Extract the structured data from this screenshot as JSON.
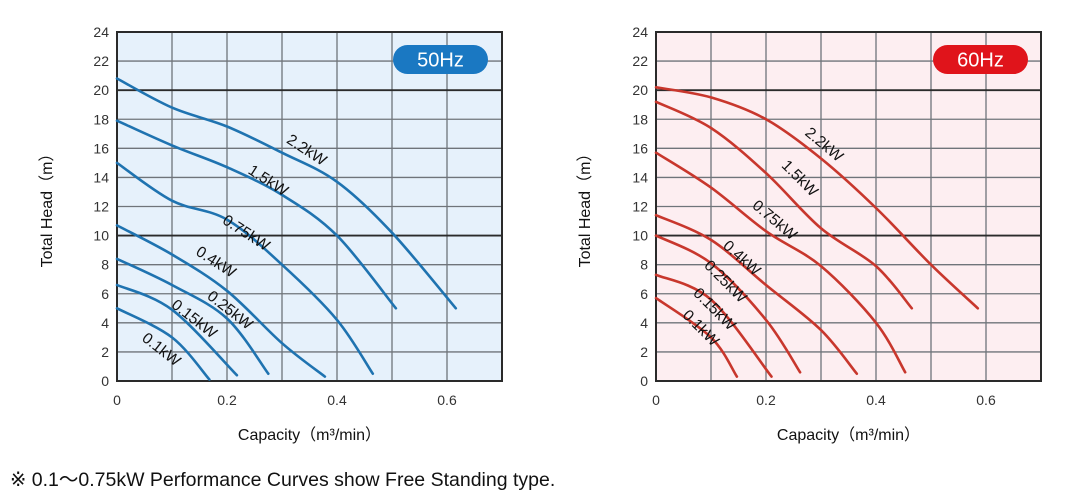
{
  "chart_data": [
    {
      "type": "line",
      "title": "",
      "badge": "50Hz",
      "xlabel": "Capacity（m³/min）",
      "ylabel": "Total Head（m）",
      "xlim": [
        0,
        0.7
      ],
      "ylim": [
        0,
        24
      ],
      "xticks": [
        0,
        0.2,
        0.4,
        0.6
      ],
      "xtick_labels": [
        "0",
        "0.2",
        "0.4",
        "0.6"
      ],
      "yticks": [
        0,
        2,
        4,
        6,
        8,
        10,
        12,
        14,
        16,
        18,
        20,
        22,
        24
      ],
      "ytick_labels": [
        "0",
        "2",
        "4",
        "6",
        "8",
        "10",
        "12",
        "14",
        "16",
        "18",
        "20",
        "22",
        "24"
      ],
      "x_grid_step": 0.1,
      "y_grid_step": 2,
      "grid": true,
      "emphasized_gridlines_y": [
        10,
        20
      ],
      "line_color": "#1f73b0",
      "background_color": "#e6f1fb",
      "badge_color": "#1a78c2",
      "series": [
        {
          "name": "2.2kW",
          "points": [
            [
              0,
              20.8
            ],
            [
              0.1,
              18.8
            ],
            [
              0.2,
              17.5
            ],
            [
              0.3,
              15.7
            ],
            [
              0.4,
              13.7
            ],
            [
              0.5,
              10.2
            ],
            [
              0.616,
              5.0
            ]
          ]
        },
        {
          "name": "1.5kW",
          "points": [
            [
              0,
              17.9
            ],
            [
              0.1,
              16.2
            ],
            [
              0.2,
              14.7
            ],
            [
              0.3,
              12.8
            ],
            [
              0.4,
              10.0
            ],
            [
              0.507,
              5.0
            ]
          ]
        },
        {
          "name": "0.75kW",
          "points": [
            [
              0,
              15.0
            ],
            [
              0.1,
              12.4
            ],
            [
              0.2,
              11.1
            ],
            [
              0.3,
              8.0
            ],
            [
              0.4,
              4.2
            ],
            [
              0.465,
              0.5
            ]
          ]
        },
        {
          "name": "0.4kW",
          "points": [
            [
              0,
              10.7
            ],
            [
              0.1,
              8.7
            ],
            [
              0.2,
              6.2
            ],
            [
              0.3,
              2.6
            ],
            [
              0.378,
              0.3
            ]
          ]
        },
        {
          "name": "0.25kW",
          "points": [
            [
              0,
              8.4
            ],
            [
              0.1,
              6.6
            ],
            [
              0.2,
              4.3
            ],
            [
              0.275,
              0.5
            ]
          ]
        },
        {
          "name": "0.15kW",
          "points": [
            [
              0,
              6.6
            ],
            [
              0.1,
              4.9
            ],
            [
              0.218,
              0.4
            ]
          ]
        },
        {
          "name": "0.1kW",
          "points": [
            [
              0,
              5.0
            ],
            [
              0.1,
              3.0
            ],
            [
              0.168,
              0.1
            ]
          ]
        }
      ],
      "curve_labels": [
        {
          "text": "2.2kW",
          "x": 0.34,
          "y": 15.6,
          "angle": 33
        },
        {
          "text": "1.5kW",
          "x": 0.27,
          "y": 13.5,
          "angle": 33
        },
        {
          "text": "0.75kW",
          "x": 0.23,
          "y": 9.9,
          "angle": 33
        },
        {
          "text": "0.4kW",
          "x": 0.175,
          "y": 7.9,
          "angle": 33
        },
        {
          "text": "0.25kW",
          "x": 0.2,
          "y": 4.6,
          "angle": 38
        },
        {
          "text": "0.15kW",
          "x": 0.135,
          "y": 4.0,
          "angle": 38
        },
        {
          "text": "0.1kW",
          "x": 0.075,
          "y": 1.9,
          "angle": 38
        }
      ]
    },
    {
      "type": "line",
      "title": "",
      "badge": "60Hz",
      "xlabel": "Capacity（m³/min）",
      "ylabel": "Total Head（m）",
      "xlim": [
        0,
        0.7
      ],
      "ylim": [
        0,
        24
      ],
      "xticks": [
        0,
        0.2,
        0.4,
        0.6
      ],
      "xtick_labels": [
        "0",
        "0.2",
        "0.4",
        "0.6"
      ],
      "yticks": [
        0,
        2,
        4,
        6,
        8,
        10,
        12,
        14,
        16,
        18,
        20,
        22,
        24
      ],
      "ytick_labels": [
        "0",
        "2",
        "4",
        "6",
        "8",
        "10",
        "12",
        "14",
        "16",
        "18",
        "20",
        "22",
        "24"
      ],
      "x_grid_step": 0.1,
      "y_grid_step": 2,
      "grid": true,
      "emphasized_gridlines_y": [
        10,
        20
      ],
      "line_color": "#c8372d",
      "background_color": "#fdeef1",
      "badge_color": "#e0141b",
      "series": [
        {
          "name": "2.2kW",
          "points": [
            [
              0,
              20.2
            ],
            [
              0.1,
              19.5
            ],
            [
              0.2,
              18.0
            ],
            [
              0.3,
              15.3
            ],
            [
              0.4,
              11.9
            ],
            [
              0.5,
              8.0
            ],
            [
              0.585,
              5.0
            ]
          ]
        },
        {
          "name": "1.5kW",
          "points": [
            [
              0,
              19.2
            ],
            [
              0.1,
              17.4
            ],
            [
              0.2,
              14.3
            ],
            [
              0.3,
              10.5
            ],
            [
              0.4,
              7.9
            ],
            [
              0.465,
              5.0
            ]
          ]
        },
        {
          "name": "0.75kW",
          "points": [
            [
              0,
              15.7
            ],
            [
              0.1,
              13.3
            ],
            [
              0.2,
              10.3
            ],
            [
              0.3,
              7.9
            ],
            [
              0.4,
              4.0
            ],
            [
              0.453,
              0.6
            ]
          ]
        },
        {
          "name": "0.4kW",
          "points": [
            [
              0,
              11.4
            ],
            [
              0.1,
              9.7
            ],
            [
              0.2,
              6.6
            ],
            [
              0.3,
              3.5
            ],
            [
              0.365,
              0.5
            ]
          ]
        },
        {
          "name": "0.25kW",
          "points": [
            [
              0,
              10.0
            ],
            [
              0.1,
              8.1
            ],
            [
              0.2,
              4.2
            ],
            [
              0.262,
              0.6
            ]
          ]
        },
        {
          "name": "0.15kW",
          "points": [
            [
              0,
              7.3
            ],
            [
              0.1,
              5.6
            ],
            [
              0.21,
              0.3
            ]
          ]
        },
        {
          "name": "0.1kW",
          "points": [
            [
              0,
              5.7
            ],
            [
              0.1,
              3.0
            ],
            [
              0.147,
              0.3
            ]
          ]
        }
      ],
      "curve_labels": [
        {
          "text": "2.2kW",
          "x": 0.3,
          "y": 16.0,
          "angle": 40
        },
        {
          "text": "1.5kW",
          "x": 0.255,
          "y": 13.7,
          "angle": 45
        },
        {
          "text": "0.75kW",
          "x": 0.21,
          "y": 10.8,
          "angle": 40
        },
        {
          "text": "0.4kW",
          "x": 0.15,
          "y": 8.2,
          "angle": 42
        },
        {
          "text": "0.25kW",
          "x": 0.12,
          "y": 6.6,
          "angle": 45
        },
        {
          "text": "0.15kW",
          "x": 0.1,
          "y": 4.7,
          "angle": 45
        },
        {
          "text": "0.1kW",
          "x": 0.075,
          "y": 3.4,
          "angle": 45
        }
      ]
    }
  ],
  "footnote": "※ 0.1～0.75kW Performance Curves show Free Standing type."
}
